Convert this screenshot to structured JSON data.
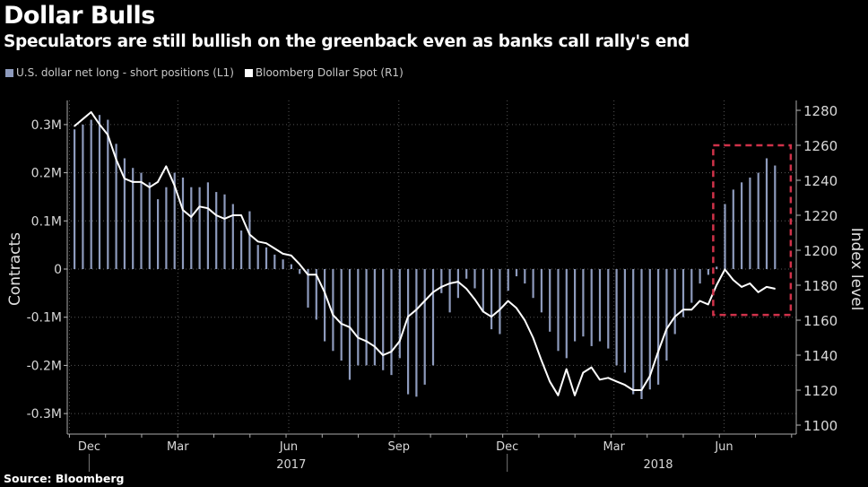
{
  "chart_data": {
    "type": "bar+line",
    "title": "Dollar Bulls",
    "subtitle": "Speculators are still bullish on the greenback even as banks call rally's end",
    "source": "Source: Bloomberg",
    "x_unit": "weeks",
    "x_ticks": [
      {
        "label": "Dec",
        "week": -0.6
      },
      {
        "label": "Mar",
        "week": 12.4
      },
      {
        "label": "Jun",
        "week": 25.7
      },
      {
        "label": "Sep",
        "week": 38.9
      },
      {
        "label": "Dec",
        "week": 51.9
      },
      {
        "label": "Mar",
        "week": 64.7
      },
      {
        "label": "Jun",
        "week": 77.9
      }
    ],
    "year_labels": [
      {
        "label": "2017",
        "week": 26
      },
      {
        "label": "2018",
        "week": 70
      }
    ],
    "year_dividers": [
      -0.6,
      51.9
    ],
    "left_axis": {
      "label": "Contracts",
      "range": [
        -0.35,
        0.35
      ],
      "ticks": [
        {
          "v": 0.3,
          "label": "0.3M"
        },
        {
          "v": 0.2,
          "label": "0.2M"
        },
        {
          "v": 0.1,
          "label": "0.1M"
        },
        {
          "v": 0,
          "label": "0"
        },
        {
          "v": -0.1,
          "label": "-0.1M"
        },
        {
          "v": -0.2,
          "label": "-0.2M"
        },
        {
          "v": -0.3,
          "label": "-0.3M"
        }
      ]
    },
    "right_axis": {
      "label": "Index level",
      "range": [
        1100,
        1288
      ],
      "ticks": [
        1280,
        1260,
        1240,
        1220,
        1200,
        1180,
        1160,
        1140,
        1120,
        1100
      ]
    },
    "series": [
      {
        "name": "U.S. dollar net long - short positions (L1)",
        "type": "bar",
        "axis": "left",
        "color": "#8e9bbd",
        "unit": "million contracts",
        "values": [
          0.29,
          0.3,
          0.31,
          0.32,
          0.31,
          0.26,
          0.23,
          0.21,
          0.2,
          0.18,
          0.145,
          0.17,
          0.2,
          0.19,
          0.17,
          0.17,
          0.18,
          0.16,
          0.155,
          0.135,
          0.08,
          0.12,
          0.05,
          0.045,
          0.03,
          0.02,
          0.01,
          -0.01,
          -0.08,
          -0.105,
          -0.15,
          -0.17,
          -0.19,
          -0.23,
          -0.2,
          -0.2,
          -0.2,
          -0.21,
          -0.22,
          -0.185,
          -0.26,
          -0.265,
          -0.24,
          -0.2,
          -0.05,
          -0.09,
          -0.06,
          -0.02,
          -0.04,
          -0.09,
          -0.125,
          -0.135,
          -0.045,
          -0.015,
          -0.03,
          -0.06,
          -0.09,
          -0.13,
          -0.17,
          -0.185,
          -0.15,
          -0.14,
          -0.16,
          -0.15,
          -0.165,
          -0.2,
          -0.215,
          -0.26,
          -0.27,
          -0.25,
          -0.24,
          -0.19,
          -0.135,
          -0.1,
          -0.07,
          -0.03,
          -0.012,
          0.005,
          0.135,
          0.165,
          0.18,
          0.19,
          0.2,
          0.23,
          0.215
        ]
      },
      {
        "name": "Bloomberg Dollar Spot (R1)",
        "type": "line",
        "axis": "right",
        "color": "#ffffff",
        "values": [
          1271,
          1275,
          1279,
          1272,
          1266,
          1252,
          1241,
          1239,
          1239,
          1236,
          1239,
          1248,
          1237,
          1223,
          1219,
          1225,
          1224,
          1220,
          1218,
          1220,
          1220,
          1209,
          1205,
          1204,
          1201,
          1198,
          1197,
          1192,
          1186,
          1186,
          1176,
          1163,
          1158,
          1156,
          1150,
          1148,
          1145,
          1140,
          1142,
          1148,
          1162,
          1166,
          1171,
          1176,
          1179,
          1181,
          1182,
          1178,
          1172,
          1165,
          1162,
          1166,
          1171,
          1167,
          1160,
          1150,
          1137,
          1125,
          1117,
          1132,
          1117,
          1130,
          1133,
          1126,
          1127,
          1125,
          1123,
          1120,
          1120,
          1128,
          1142,
          1155,
          1162,
          1166,
          1166,
          1171,
          1169,
          1180,
          1189,
          1183,
          1179,
          1181,
          1176,
          1179,
          1178
        ]
      }
    ],
    "annotation_box": {
      "color": "#d0324a",
      "style": "dashed",
      "week_range": [
        76.6,
        85.9
      ],
      "right_value_range": [
        1163,
        1260
      ]
    },
    "legend_position": "top-left",
    "grid": true
  }
}
